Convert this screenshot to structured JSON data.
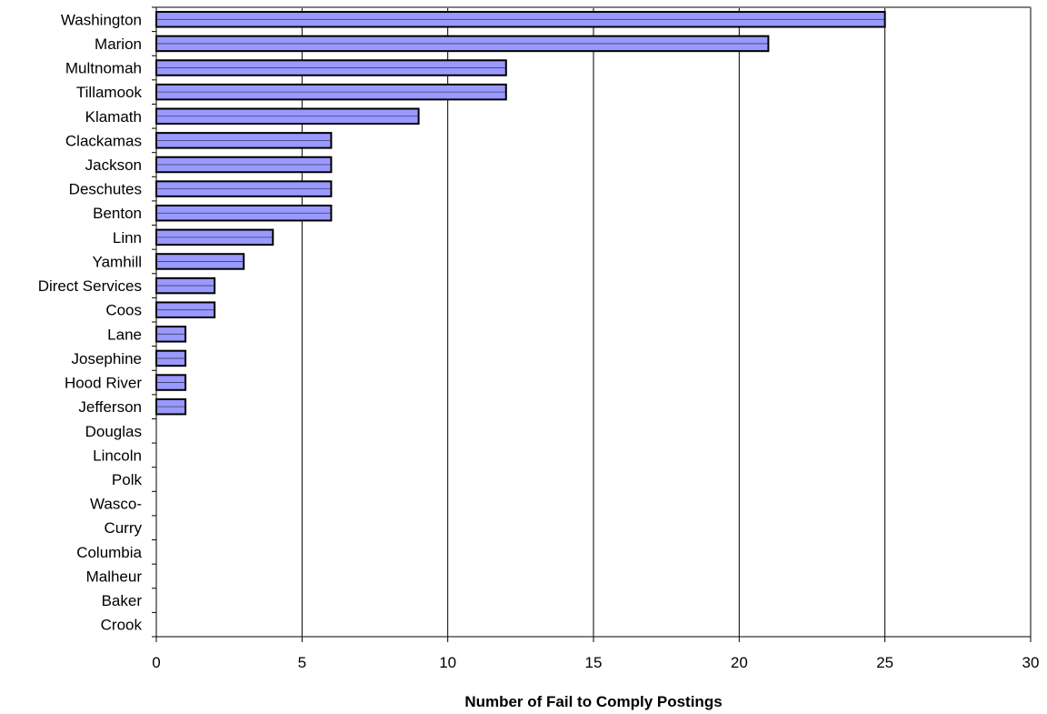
{
  "chart_data": {
    "type": "bar",
    "orientation": "horizontal",
    "categories": [
      "Washington",
      "Marion",
      "Multnomah",
      "Tillamook",
      "Klamath",
      "Clackamas",
      "Jackson",
      "Deschutes",
      "Benton",
      "Linn",
      "Yamhill",
      "Direct Services",
      "Coos",
      "Lane",
      "Josephine",
      "Hood River",
      "Jefferson",
      "Douglas",
      "Lincoln",
      "Polk",
      "Wasco-",
      "Curry",
      "Columbia",
      "Malheur",
      "Baker",
      "Crook"
    ],
    "values": [
      25,
      21,
      12,
      12,
      9,
      6,
      6,
      6,
      6,
      4,
      3,
      2,
      2,
      1,
      1,
      1,
      1,
      0,
      0,
      0,
      0,
      0,
      0,
      0,
      0,
      0
    ],
    "xlabel": "Number of Fail to Comply Postings",
    "ylabel": "",
    "xlim": [
      0,
      30
    ],
    "xticks": [
      "0",
      "5",
      "10",
      "15",
      "20",
      "25",
      "30"
    ],
    "grid": "vertical",
    "colors": {
      "bar_fill": "#9999ff",
      "bar_stroke": "#000000",
      "frame": "#808080",
      "grid": "#000000"
    }
  }
}
